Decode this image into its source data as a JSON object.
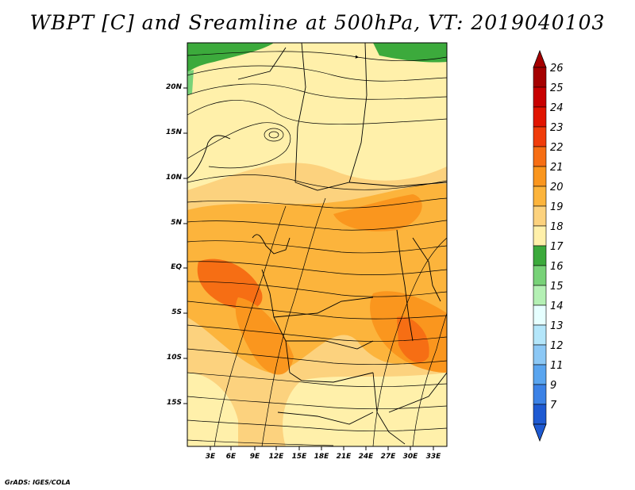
{
  "title": "WBPT [C] and Sreamline at 500hPa, VT: 2019040103",
  "credit": "GrADS: IGES/COLA",
  "lat_labels": [
    "20N",
    "15N",
    "10N",
    "5N",
    "EQ",
    "5S",
    "10S",
    "15S"
  ],
  "lon_labels": [
    "3E",
    "6E",
    "9E",
    "12E",
    "15E",
    "18E",
    "21E",
    "24E",
    "27E",
    "30E",
    "33E"
  ],
  "colorbar": {
    "labels": [
      "26",
      "25",
      "24",
      "23",
      "22",
      "21",
      "20",
      "19",
      "18",
      "17",
      "16",
      "15",
      "14",
      "13",
      "12",
      "11",
      "9",
      "7"
    ],
    "colors": [
      "#a50000",
      "#c80000",
      "#e11400",
      "#f03c0a",
      "#f66e14",
      "#fa961e",
      "#fcb43c",
      "#fcd27e",
      "#fff0aa",
      "#3caa3c",
      "#78d278",
      "#b4f0b4",
      "#e6ffff",
      "#b4e6fa",
      "#8cc8f5",
      "#5aa5ef",
      "#3c82e6",
      "#1e5ad2"
    ]
  },
  "legend_top_color": "#a50000",
  "legend_bottom_color": "#1e5ad2"
}
